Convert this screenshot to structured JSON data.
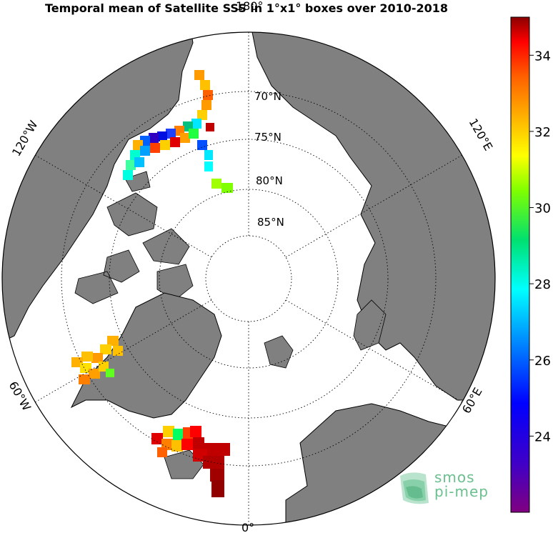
{
  "title": "Temporal mean of Satellite SSS in 1°x1° boxes over 2010-2018",
  "meridian_labels": {
    "north": "180°",
    "south": "0°",
    "nw": "120°W",
    "ne": "120°E",
    "sw": "60°W",
    "se": "60°E"
  },
  "parallel_labels": [
    "70°N",
    "75°N",
    "80°N",
    "85°N"
  ],
  "colorbar": {
    "ticks": [
      "34",
      "32",
      "30",
      "28",
      "26",
      "24"
    ],
    "range": [
      22,
      35
    ]
  },
  "logo": {
    "line1": "smos",
    "line2": "pi-mep",
    "color": "#6cbf8f"
  },
  "colors": {
    "land": "#808080",
    "ocean": "#ffffff",
    "border": "#000000"
  }
}
